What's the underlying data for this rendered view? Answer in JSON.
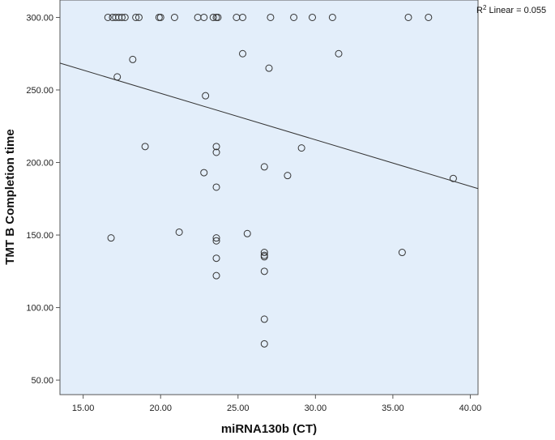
{
  "chart_data": {
    "type": "scatter",
    "xlabel": "miRNA130b (CT)",
    "ylabel": "TMT B Completion time",
    "xlim": [
      13.5,
      40.5
    ],
    "ylim": [
      40,
      312
    ],
    "x_ticks": [
      "15.00",
      "20.00",
      "25.00",
      "30.00",
      "35.00",
      "40.00"
    ],
    "y_ticks": [
      "50.00",
      "100.00",
      "150.00",
      "200.00",
      "250.00",
      "300.00"
    ],
    "x_tick_values": [
      15,
      20,
      25,
      30,
      35,
      40
    ],
    "y_tick_values": [
      50,
      100,
      150,
      200,
      250,
      300
    ],
    "grid": false,
    "fit_line": {
      "label": "Linear",
      "r2_text": "R² Linear = 0.055",
      "x": [
        13.5,
        40.5
      ],
      "y": [
        268.5,
        182
      ]
    },
    "points": [
      {
        "x": 16.6,
        "y": 300
      },
      {
        "x": 16.9,
        "y": 300
      },
      {
        "x": 17.1,
        "y": 300
      },
      {
        "x": 17.3,
        "y": 300
      },
      {
        "x": 17.5,
        "y": 300
      },
      {
        "x": 17.7,
        "y": 300
      },
      {
        "x": 18.4,
        "y": 300
      },
      {
        "x": 18.6,
        "y": 300
      },
      {
        "x": 19.9,
        "y": 300
      },
      {
        "x": 20.0,
        "y": 300
      },
      {
        "x": 20.9,
        "y": 300
      },
      {
        "x": 22.4,
        "y": 300
      },
      {
        "x": 22.8,
        "y": 300
      },
      {
        "x": 23.4,
        "y": 300
      },
      {
        "x": 23.6,
        "y": 300
      },
      {
        "x": 23.7,
        "y": 300
      },
      {
        "x": 24.9,
        "y": 300
      },
      {
        "x": 25.3,
        "y": 300
      },
      {
        "x": 27.1,
        "y": 300
      },
      {
        "x": 28.6,
        "y": 300
      },
      {
        "x": 29.8,
        "y": 300
      },
      {
        "x": 31.1,
        "y": 300
      },
      {
        "x": 36.0,
        "y": 300
      },
      {
        "x": 37.3,
        "y": 300
      },
      {
        "x": 25.3,
        "y": 275
      },
      {
        "x": 31.5,
        "y": 275
      },
      {
        "x": 18.2,
        "y": 271
      },
      {
        "x": 27.0,
        "y": 265
      },
      {
        "x": 17.2,
        "y": 259
      },
      {
        "x": 22.9,
        "y": 246
      },
      {
        "x": 19.0,
        "y": 211
      },
      {
        "x": 23.6,
        "y": 211
      },
      {
        "x": 29.1,
        "y": 210
      },
      {
        "x": 23.6,
        "y": 207
      },
      {
        "x": 26.7,
        "y": 197
      },
      {
        "x": 22.8,
        "y": 193
      },
      {
        "x": 28.2,
        "y": 191
      },
      {
        "x": 38.9,
        "y": 189
      },
      {
        "x": 23.6,
        "y": 183
      },
      {
        "x": 21.2,
        "y": 152
      },
      {
        "x": 25.6,
        "y": 151
      },
      {
        "x": 23.6,
        "y": 148
      },
      {
        "x": 16.8,
        "y": 148
      },
      {
        "x": 23.6,
        "y": 146
      },
      {
        "x": 26.7,
        "y": 138
      },
      {
        "x": 35.6,
        "y": 138
      },
      {
        "x": 26.7,
        "y": 136
      },
      {
        "x": 26.7,
        "y": 135
      },
      {
        "x": 23.6,
        "y": 134
      },
      {
        "x": 26.7,
        "y": 125
      },
      {
        "x": 23.6,
        "y": 122
      },
      {
        "x": 26.7,
        "y": 92
      },
      {
        "x": 26.7,
        "y": 75
      }
    ],
    "colors": {
      "plot_bg": "#e3eefa",
      "marker": "#333333",
      "line": "#333333"
    }
  }
}
